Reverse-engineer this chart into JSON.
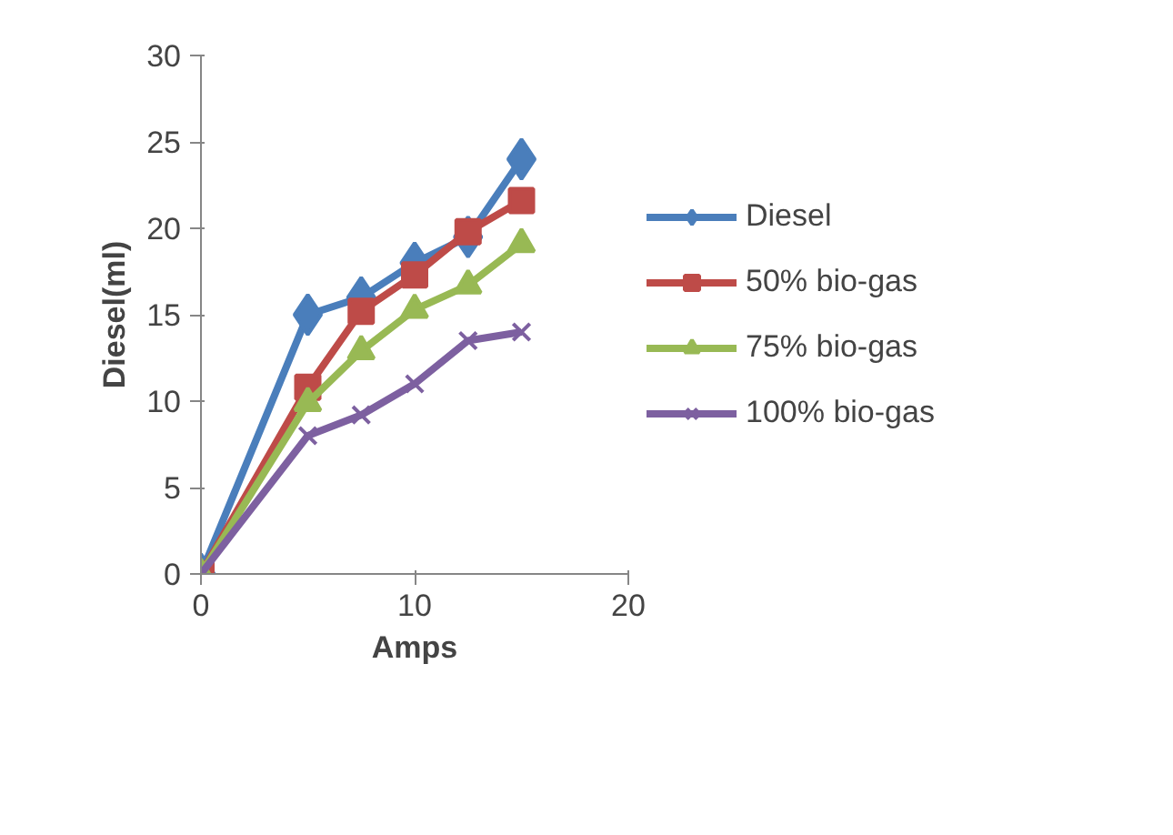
{
  "chart_data": {
    "type": "line",
    "xlabel": "Amps",
    "ylabel": "Diesel(ml)",
    "x": [
      0,
      5,
      7.5,
      10,
      12.5,
      15
    ],
    "xlim": [
      0,
      20
    ],
    "xticks": [
      0,
      10,
      20
    ],
    "ylim": [
      0,
      30
    ],
    "yticks": [
      0,
      5,
      10,
      15,
      20,
      25,
      30
    ],
    "grid": false,
    "legend": "right",
    "series": [
      {
        "name": "Diesel",
        "color": "#4a7ebb",
        "marker": "diamond",
        "values": [
          0,
          15,
          16,
          18,
          19.5,
          24
        ]
      },
      {
        "name": "50% bio-gas",
        "color": "#be4b48",
        "marker": "square",
        "values": [
          0,
          10.8,
          15.2,
          17.3,
          19.8,
          21.6
        ]
      },
      {
        "name": "75% bio-gas",
        "color": "#98b954",
        "marker": "triangle",
        "values": [
          0,
          9.9,
          12.9,
          15.3,
          16.7,
          19.1
        ]
      },
      {
        "name": "100% bio-gas",
        "color": "#7d60a0",
        "marker": "cross",
        "values": [
          0,
          8,
          9.2,
          11,
          13.5,
          14
        ]
      }
    ]
  }
}
